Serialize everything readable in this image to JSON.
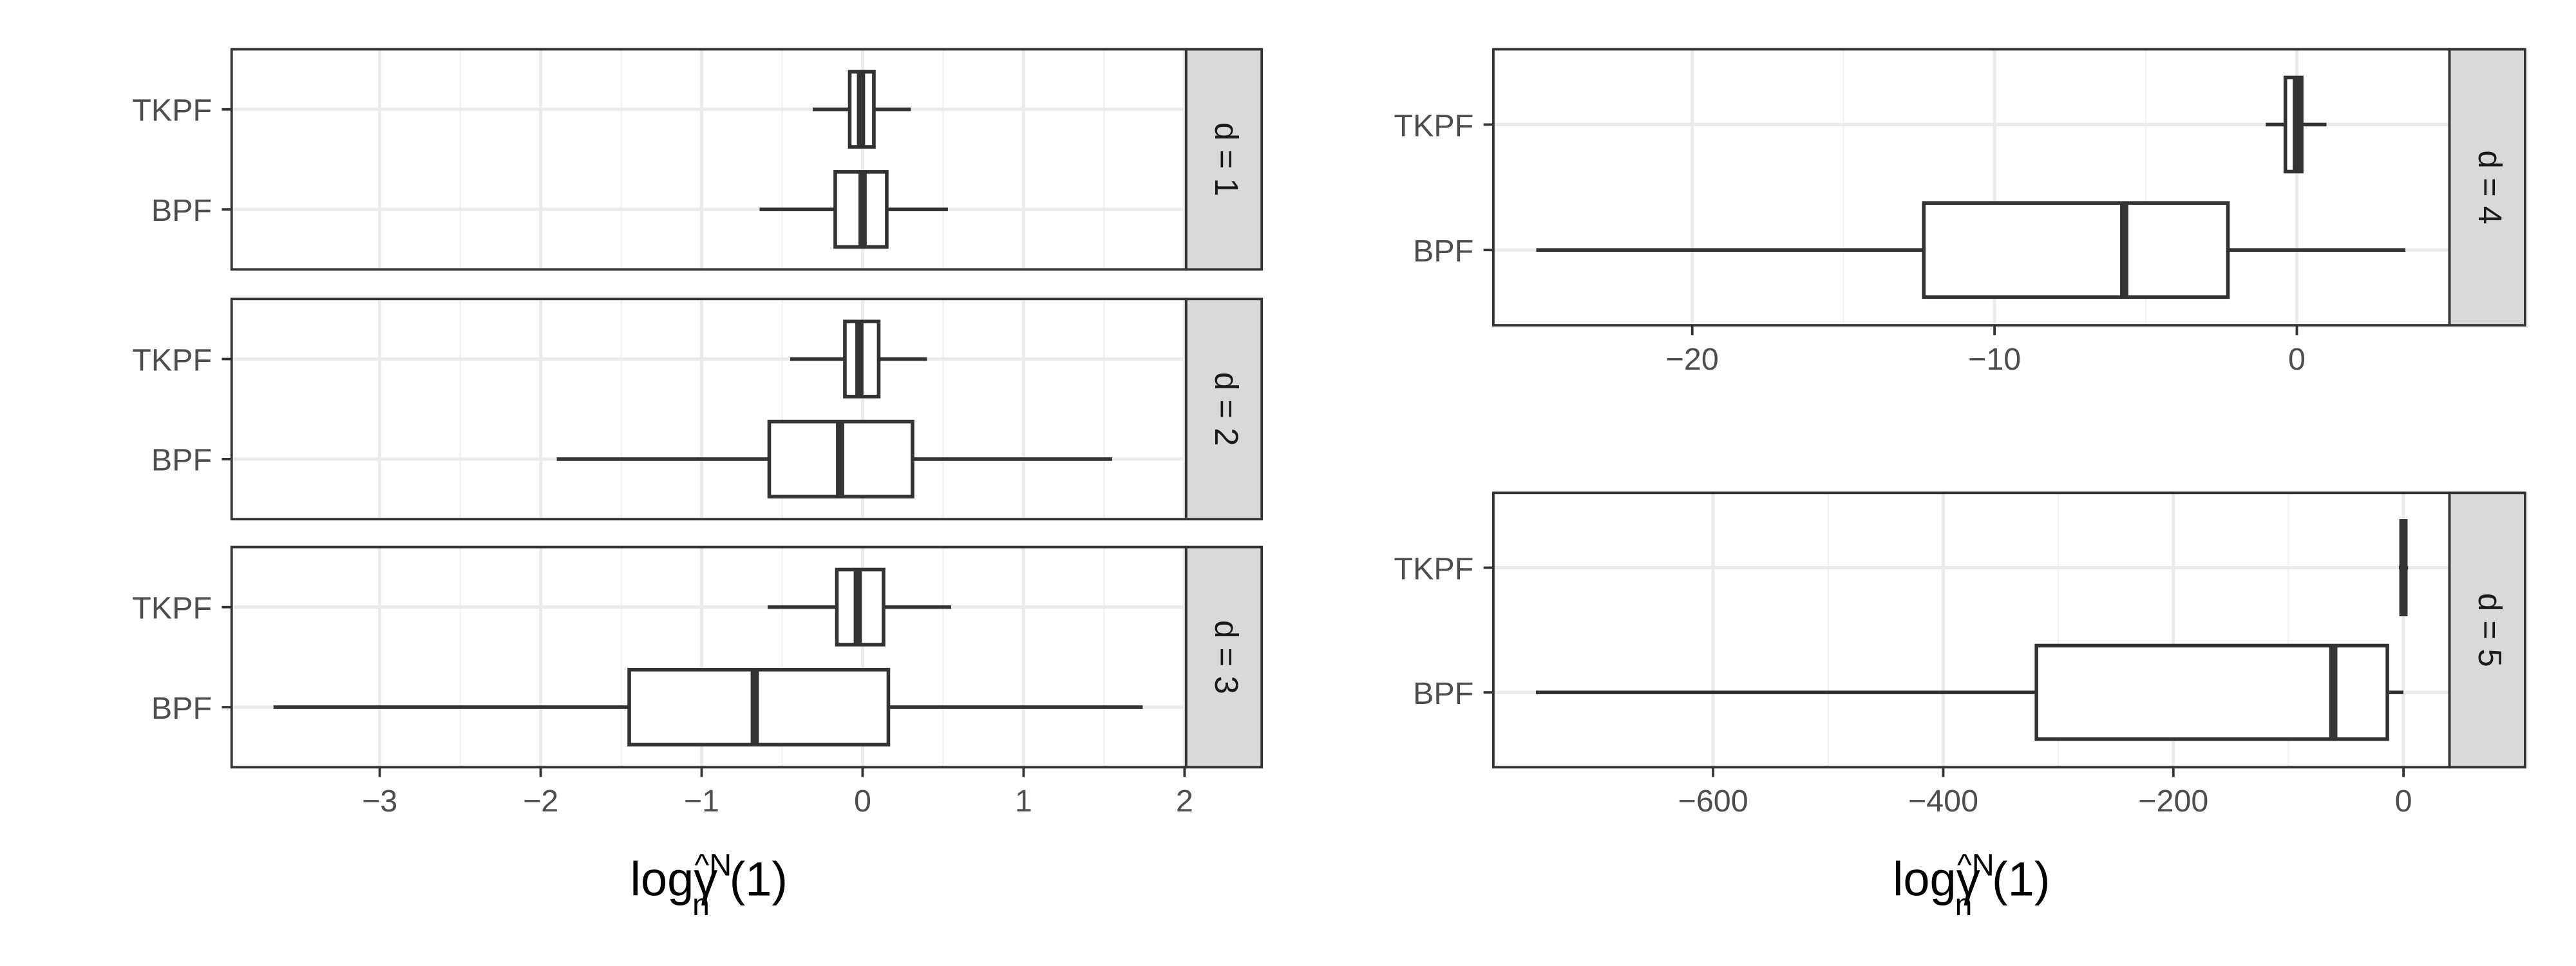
{
  "chart_data": [
    {
      "type": "boxplot",
      "strip": "d = 1",
      "categories": [
        "TKPF",
        "BPF"
      ],
      "stats": [
        [
          -0.31,
          -0.08,
          -0.01,
          0.07,
          0.3
        ],
        [
          -0.64,
          -0.17,
          0.0,
          0.15,
          0.53
        ]
      ],
      "xlim": [
        -3.92,
        2.01
      ],
      "xticks": [
        {
          "value": -3,
          "label": "−3"
        },
        {
          "value": -2,
          "label": "−2"
        },
        {
          "value": -1,
          "label": "−1"
        },
        0,
        1,
        2
      ]
    },
    {
      "type": "boxplot",
      "strip": "d = 2",
      "categories": [
        "TKPF",
        "BPF"
      ],
      "stats": [
        [
          -0.45,
          -0.11,
          -0.02,
          0.1,
          0.4
        ],
        [
          -1.9,
          -0.58,
          -0.14,
          0.31,
          1.55
        ]
      ],
      "xlim": [
        -3.92,
        2.01
      ],
      "xticks": [
        {
          "value": -3,
          "label": "−3"
        },
        {
          "value": -2,
          "label": "−2"
        },
        {
          "value": -1,
          "label": "−1"
        },
        0,
        1,
        2
      ]
    },
    {
      "type": "boxplot",
      "strip": "d = 3",
      "categories": [
        "TKPF",
        "BPF"
      ],
      "stats": [
        [
          -0.59,
          -0.16,
          -0.03,
          0.13,
          0.55
        ],
        [
          -3.66,
          -1.45,
          -0.67,
          0.16,
          1.74
        ]
      ],
      "xlim": [
        -3.92,
        2.01
      ],
      "xticks": [
        {
          "value": -3,
          "label": "−3"
        },
        {
          "value": -2,
          "label": "−2"
        },
        {
          "value": -1,
          "label": "−1"
        },
        0,
        1,
        2
      ],
      "xlabel": {
        "base": "logγ",
        "sup": "^N",
        "sub": "n",
        "tail": "(1)"
      }
    },
    {
      "type": "boxplot",
      "strip": "d = 4",
      "categories": [
        "TKPF",
        "BPF"
      ],
      "stats": [
        [
          -1.03,
          -0.38,
          0.0,
          0.16,
          0.98
        ],
        [
          -25.16,
          -12.34,
          -5.71,
          -2.28,
          3.59
        ]
      ],
      "xlim": [
        -26.58,
        5.05
      ],
      "xticks": [
        {
          "value": -20,
          "label": "−20"
        },
        {
          "value": -10,
          "label": "−10"
        },
        0
      ]
    },
    {
      "type": "boxplot",
      "strip": "d = 5",
      "categories": [
        "TKPF",
        "BPF"
      ],
      "stats": [
        [
          -4,
          -2,
          0,
          2,
          4
        ],
        [
          -754,
          -319,
          -61,
          -14,
          0
        ]
      ],
      "xlim": [
        -791,
        40
      ],
      "xticks": [
        {
          "value": -600,
          "label": "−600"
        },
        {
          "value": -400,
          "label": "−400"
        },
        {
          "value": -200,
          "label": "−200"
        },
        0
      ],
      "xlabel": {
        "base": "logγ",
        "sup": "^N",
        "sub": "n",
        "tail": "(1)"
      }
    }
  ]
}
